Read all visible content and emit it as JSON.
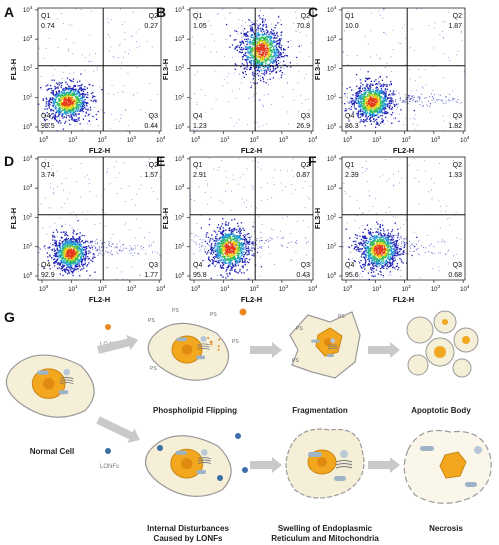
{
  "flow_panels": [
    {
      "letter": "A",
      "q1": {
        "label": "Q1",
        "value": "0.74"
      },
      "q2": {
        "label": "Q2",
        "value": "0.27"
      },
      "q3": {
        "label": "Q3",
        "value": "0.44"
      },
      "q4": {
        "label": "Q4",
        "value": "95.5"
      }
    },
    {
      "letter": "B",
      "q1": {
        "label": "Q1",
        "value": "1.05"
      },
      "q2": {
        "label": "Q2",
        "value": "70.8"
      },
      "q3": {
        "label": "Q3",
        "value": "26.9"
      },
      "q4": {
        "label": "Q4",
        "value": "1.23"
      }
    },
    {
      "letter": "C",
      "q1": {
        "label": "Q1",
        "value": "10.0"
      },
      "q2": {
        "label": "Q2",
        "value": "1.87"
      },
      "q3": {
        "label": "Q3",
        "value": "1.82"
      },
      "q4": {
        "label": "Q4",
        "value": "86.3"
      }
    },
    {
      "letter": "D",
      "q1": {
        "label": "Q1",
        "value": "3.74"
      },
      "q2": {
        "label": "Q2",
        "value": "1.57"
      },
      "q3": {
        "label": "Q3",
        "value": "1.77"
      },
      "q4": {
        "label": "Q4",
        "value": "92.9"
      }
    },
    {
      "letter": "E",
      "q1": {
        "label": "Q1",
        "value": "2.91"
      },
      "q2": {
        "label": "Q2",
        "value": "0.87"
      },
      "q3": {
        "label": "Q3",
        "value": "0.43"
      },
      "q4": {
        "label": "Q4",
        "value": "95.8"
      }
    },
    {
      "letter": "F",
      "q1": {
        "label": "Q1",
        "value": "2.39"
      },
      "q2": {
        "label": "Q2",
        "value": "1.33"
      },
      "q3": {
        "label": "Q3",
        "value": "0.68"
      },
      "q4": {
        "label": "Q4",
        "value": "95.6"
      }
    }
  ],
  "axes": {
    "xlabel": "FL2-H",
    "ylabel": "FL3-H",
    "ticks": [
      {
        "base": "10",
        "exp": "0"
      },
      {
        "base": "10",
        "exp": "1"
      },
      {
        "base": "10",
        "exp": "2"
      },
      {
        "base": "10",
        "exp": "3"
      },
      {
        "base": "10",
        "exp": "4"
      }
    ]
  },
  "diagram": {
    "letter": "G",
    "normal_cell": "Normal Cell",
    "agent_top": "LC-ME",
    "agent_bottom": "LONFs",
    "ps_label": "PS",
    "top_steps": [
      "Phospholipid Flipping",
      "Fragmentation",
      "Apoptotic Body"
    ],
    "bottom_steps": [
      {
        "line1": "Internal Disturbances",
        "line2": "Caused by LONFs"
      },
      {
        "line1": "Swelling of Endoplasmic",
        "line2": "Reticulum and Mitochondria"
      },
      {
        "line1": "Necrosis",
        "line2": ""
      }
    ],
    "colors": {
      "cell_fill": "#f5efd8",
      "cell_stroke": "#9a9a9a",
      "nucleus": "#f2a71e",
      "nucleus_core": "#e08a12",
      "organelle": "#9fb3c8",
      "orange_dot": "#e98a22",
      "blue_dot": "#3a6ea5",
      "arrow": "#c9c9c9"
    }
  }
}
